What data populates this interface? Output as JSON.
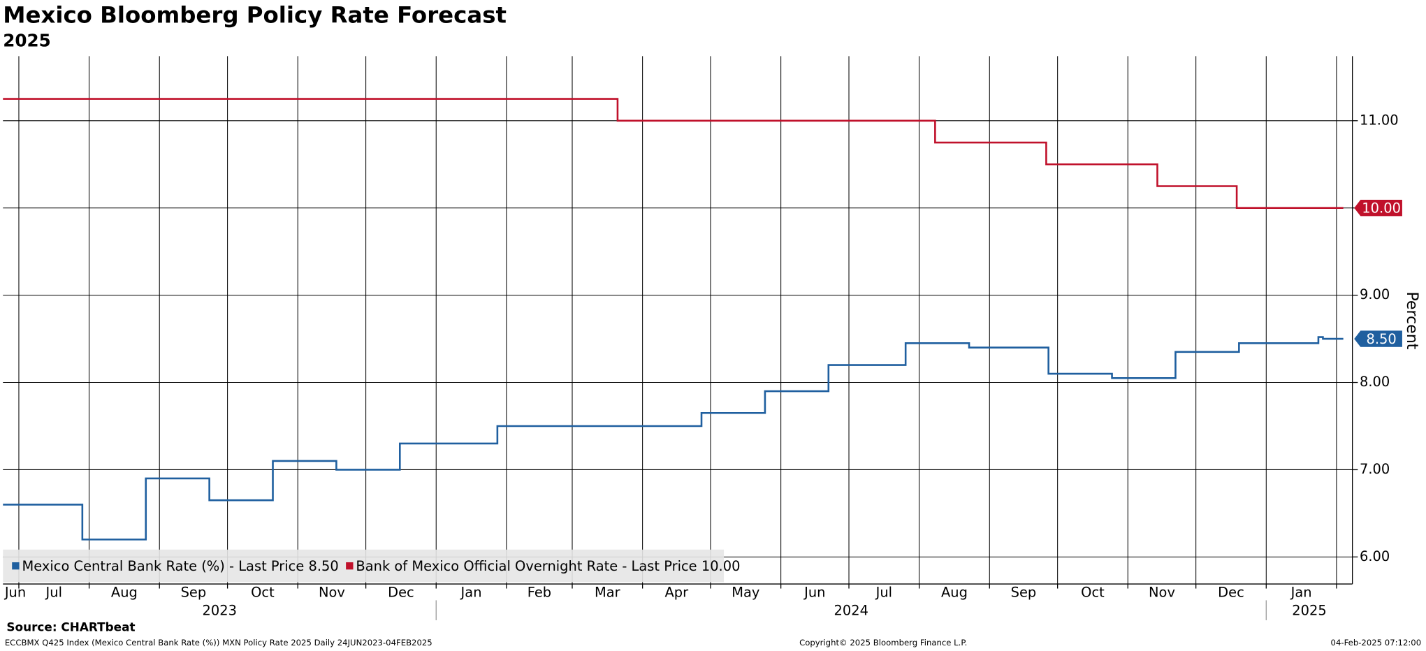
{
  "chart_data": {
    "type": "line",
    "step": "post",
    "title": "Mexico Bloomberg Policy Rate Forecast",
    "subtitle": "2025",
    "y_label": "Percent",
    "source": "Source: CHARTbeat",
    "footer_left": "ECCBMX Q425 Index (Mexico Central Bank Rate (%)) MXN Policy Rate 2025  Daily 24JUN2023-04FEB2025",
    "footer_center": "Copyright© 2025 Bloomberg Finance L.P.",
    "footer_right": "04-Feb-2025 07:12:00",
    "xlim": [
      "2023-06-24",
      "2025-02-08"
    ],
    "ylim": [
      5.69,
      11.74
    ],
    "yticks": [
      {
        "value": 6,
        "label": "6.00"
      },
      {
        "value": 7,
        "label": "7.00"
      },
      {
        "value": 8,
        "label": "8.00"
      },
      {
        "value": 9,
        "label": "9.00"
      },
      {
        "value": 10,
        "label": "10.00"
      },
      {
        "value": 11,
        "label": "11.00"
      }
    ],
    "xticks": [
      {
        "value": "2023-06-01",
        "label": "Jun"
      },
      {
        "value": "2023-07-01",
        "label": "Jul"
      },
      {
        "value": "2023-08-01",
        "label": "Aug"
      },
      {
        "value": "2023-09-01",
        "label": "Sep"
      },
      {
        "value": "2023-10-01",
        "label": "Oct"
      },
      {
        "value": "2023-11-01",
        "label": "Nov"
      },
      {
        "value": "2023-12-01",
        "label": "Dec"
      },
      {
        "value": "2024-01-01",
        "label": "Jan"
      },
      {
        "value": "2024-02-01",
        "label": "Feb"
      },
      {
        "value": "2024-03-01",
        "label": "Mar"
      },
      {
        "value": "2024-04-01",
        "label": "Apr"
      },
      {
        "value": "2024-05-01",
        "label": "May"
      },
      {
        "value": "2024-06-01",
        "label": "Jun"
      },
      {
        "value": "2024-07-01",
        "label": "Jul"
      },
      {
        "value": "2024-08-01",
        "label": "Aug"
      },
      {
        "value": "2024-09-01",
        "label": "Sep"
      },
      {
        "value": "2024-10-01",
        "label": "Oct"
      },
      {
        "value": "2024-11-01",
        "label": "Nov"
      },
      {
        "value": "2024-12-01",
        "label": "Dec"
      },
      {
        "value": "2025-01-01",
        "label": "Jan"
      },
      {
        "value": "2025-02-01",
        "label": null
      }
    ],
    "x_year_ticks": [
      {
        "value": "2023-01-01",
        "label": "2023"
      },
      {
        "value": "2024-01-01",
        "label": "2024"
      },
      {
        "value": "2025-01-01",
        "label": "2025"
      }
    ],
    "grid": true,
    "legend": "bottom-left",
    "series": [
      {
        "name": "Mexico Central Bank Rate (%) - Last Price 8.50",
        "color": "#1f5f9f",
        "last_price_label": "8.50",
        "x": [
          "2023-06-24",
          "2023-07-29",
          "2023-08-26",
          "2023-09-23",
          "2023-10-21",
          "2023-11-18",
          "2023-12-16",
          "2024-01-28",
          "2024-04-27",
          "2024-05-25",
          "2024-06-22",
          "2024-07-26",
          "2024-08-23",
          "2024-09-27",
          "2024-10-25",
          "2024-11-22",
          "2024-12-20",
          "2025-01-24",
          "2025-01-26",
          "2025-02-04"
        ],
        "values": [
          6.6,
          6.2,
          6.9,
          6.65,
          7.1,
          7.0,
          7.3,
          7.5,
          7.65,
          7.9,
          8.2,
          8.45,
          8.4,
          8.1,
          8.05,
          8.35,
          8.45,
          8.52,
          8.5,
          8.5
        ]
      },
      {
        "name": "Bank of Mexico Official Overnight Rate - Last Price 10.00",
        "color": "#c0112b",
        "last_price_label": "10.00",
        "x": [
          "2023-06-24",
          "2024-03-21",
          "2024-08-08",
          "2024-09-26",
          "2024-11-14",
          "2024-12-19",
          "2025-02-04"
        ],
        "values": [
          11.25,
          11.0,
          10.75,
          10.5,
          10.25,
          10.0,
          10.0
        ]
      }
    ]
  }
}
